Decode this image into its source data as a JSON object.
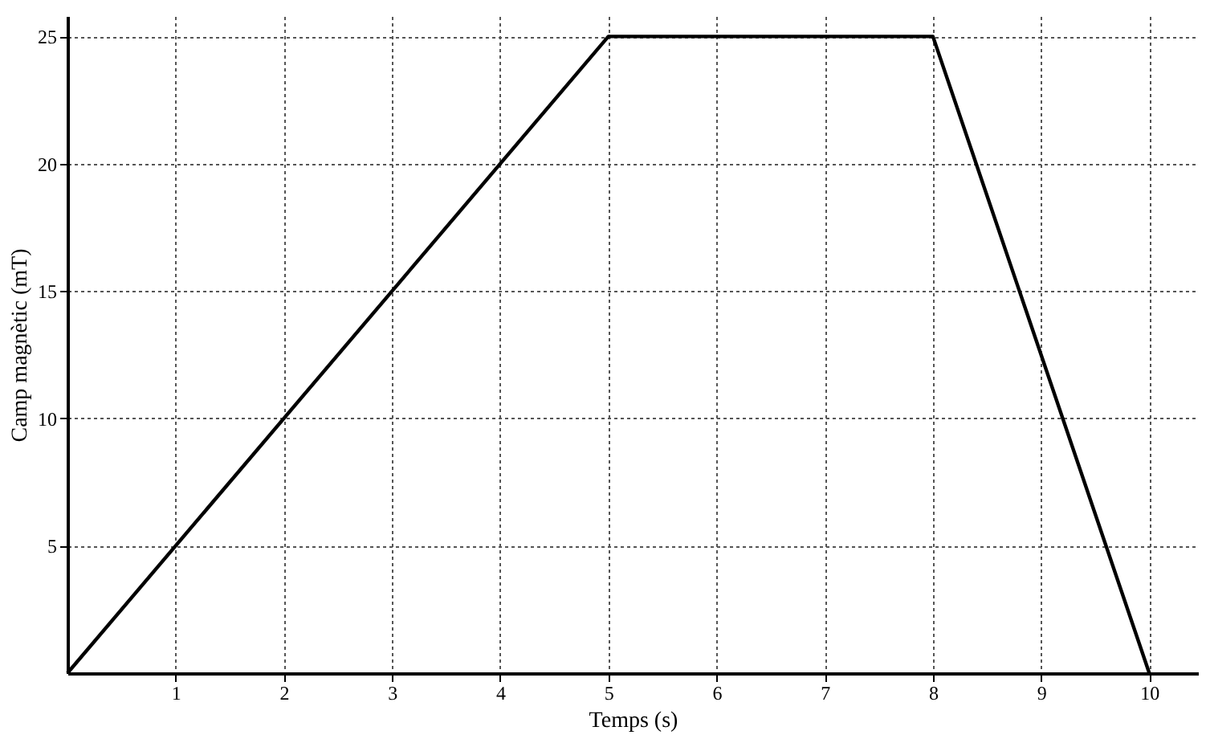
{
  "chart_data": {
    "type": "line",
    "xlabel": "Temps (s)",
    "ylabel": "Camp magnètic (mT)",
    "x": [
      0,
      5,
      8,
      10
    ],
    "series": [
      {
        "color": "#000000",
        "values": [
          0,
          25,
          25,
          0
        ]
      }
    ],
    "xlim": [
      0,
      10.45
    ],
    "ylim": [
      0,
      25.8
    ],
    "xticks": [
      1,
      2,
      3,
      4,
      5,
      6,
      7,
      8,
      9,
      10
    ],
    "yticks": [
      5,
      10,
      15,
      20,
      25
    ],
    "grid": true,
    "marker": "none",
    "line_style": "solid"
  }
}
